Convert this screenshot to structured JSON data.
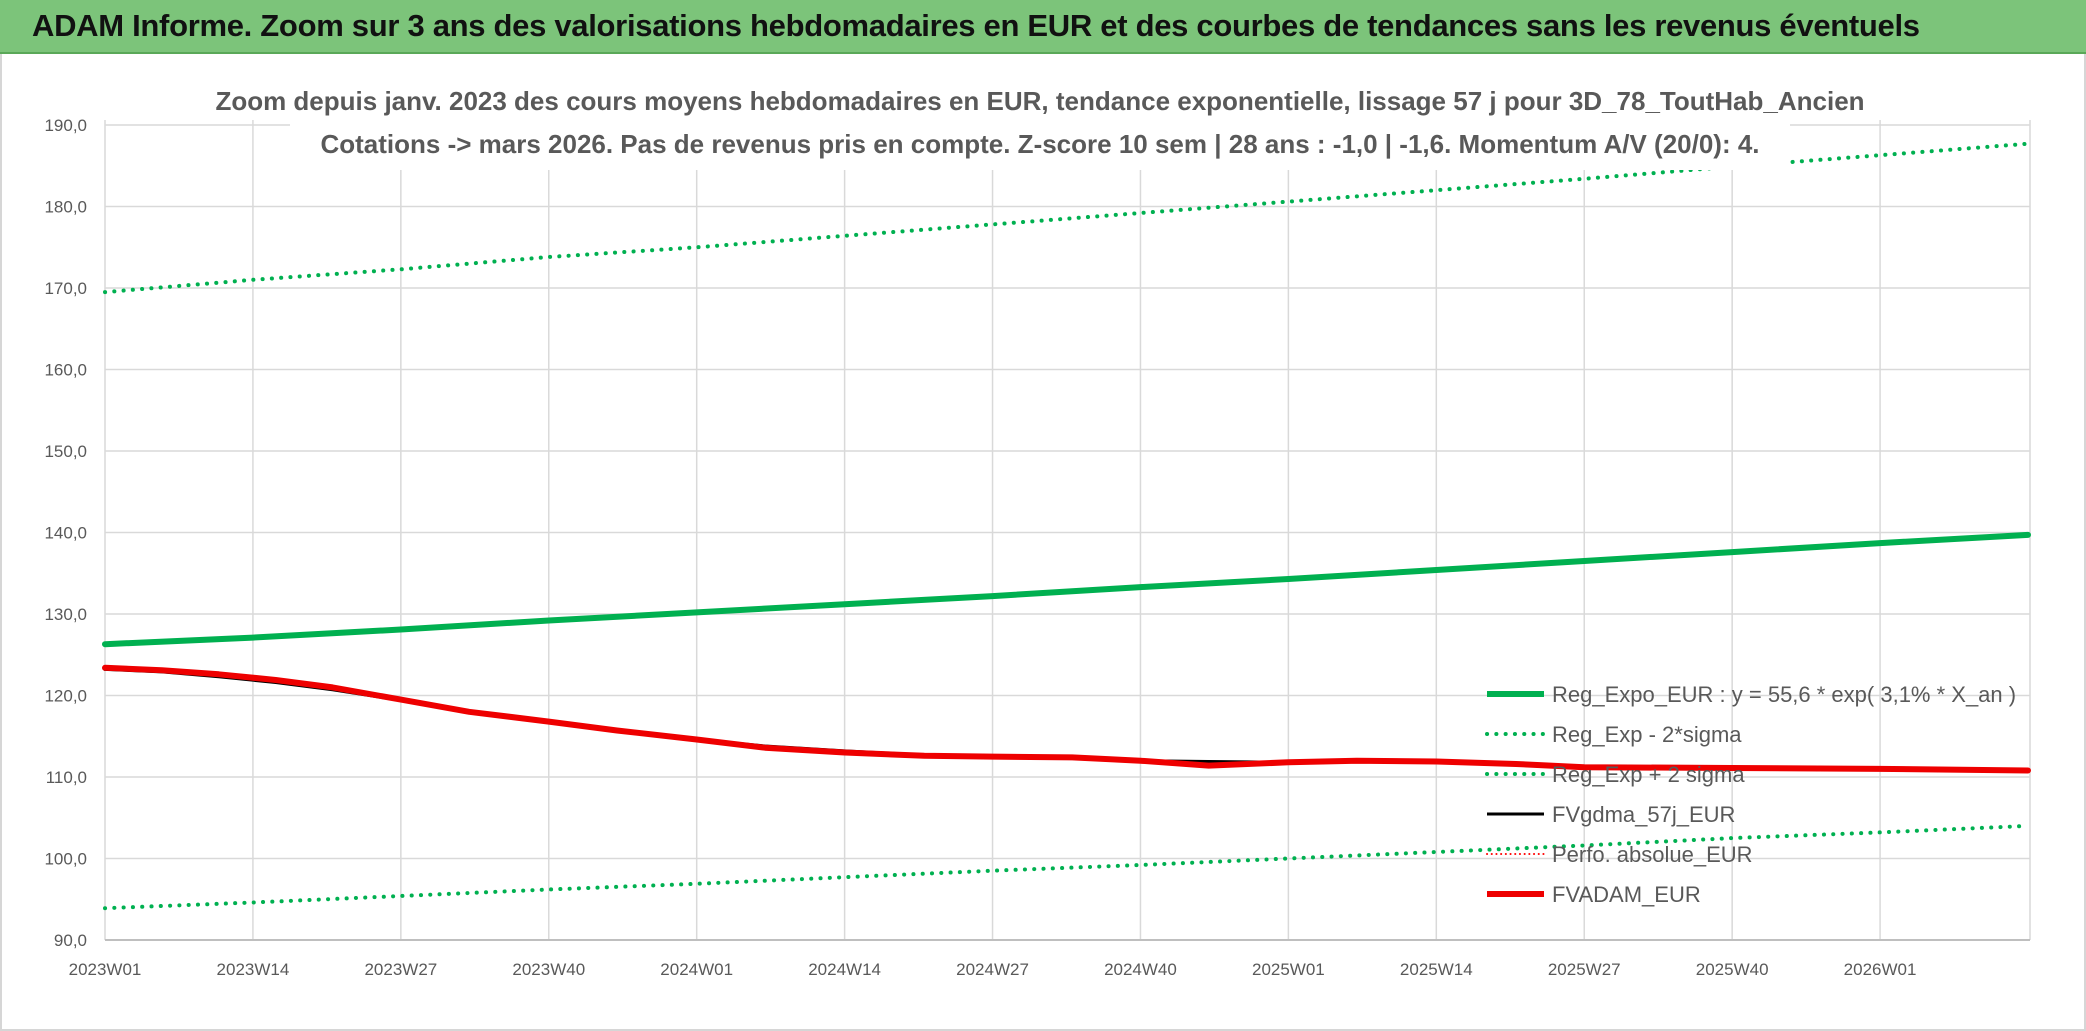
{
  "banner": {
    "title": "ADAM Informe. Zoom sur 3 ans des valorisations hebdomadaires en EUR et des courbes de tendances sans les revenus éventuels"
  },
  "chart_data": {
    "type": "line",
    "title": "Zoom depuis janv. 2023 des cours moyens hebdomadaires en EUR, tendance exponentielle, lissage 57 j pour 3D_78_ToutHab_Ancien",
    "subtitle": "Cotations -> mars 2026. Pas de revenus pris en compte. Z-score 10 sem | 28 ans : -1,0 | -1,6. Momentum A/V (20/0): 4.",
    "xlabel": "",
    "ylabel": "",
    "ylim": [
      90,
      190
    ],
    "yticks": [
      90,
      100,
      110,
      120,
      130,
      140,
      150,
      160,
      170,
      180,
      190
    ],
    "ytick_labels": [
      "90,0",
      "100,0",
      "110,0",
      "120,0",
      "130,0",
      "140,0",
      "150,0",
      "160,0",
      "170,0",
      "180,0",
      "190,0"
    ],
    "x_categories": [
      "2023W01",
      "2023W14",
      "2023W27",
      "2023W40",
      "2024W01",
      "2024W14",
      "2024W27",
      "2024W40",
      "2025W01",
      "2025W14",
      "2025W27",
      "2025W40",
      "2026W01"
    ],
    "x_range_weeks": [
      0,
      169
    ],
    "grid": true,
    "legend_position": "bottom-right",
    "series": [
      {
        "name": "Reg_Expo_EUR : y = 55,6 * exp( 3,1% *  X_an )",
        "style": "solid",
        "color": "#00b050",
        "width": 6,
        "points": [
          [
            0,
            126.3
          ],
          [
            13,
            127.1
          ],
          [
            26,
            128.1
          ],
          [
            39,
            129.2
          ],
          [
            52,
            130.2
          ],
          [
            65,
            131.2
          ],
          [
            78,
            132.2
          ],
          [
            91,
            133.3
          ],
          [
            104,
            134.3
          ],
          [
            117,
            135.4
          ],
          [
            130,
            136.5
          ],
          [
            143,
            137.6
          ],
          [
            156,
            138.7
          ],
          [
            169,
            139.7
          ]
        ]
      },
      {
        "name": "Reg_Exp - 2*sigma",
        "style": "dotted",
        "color": "#00b050",
        "width": 4,
        "points": [
          [
            0,
            93.9
          ],
          [
            13,
            94.6
          ],
          [
            26,
            95.4
          ],
          [
            39,
            96.2
          ],
          [
            52,
            96.9
          ],
          [
            65,
            97.7
          ],
          [
            78,
            98.5
          ],
          [
            91,
            99.2
          ],
          [
            104,
            100.0
          ],
          [
            117,
            100.8
          ],
          [
            130,
            101.6
          ],
          [
            143,
            102.5
          ],
          [
            156,
            103.2
          ],
          [
            169,
            104.0
          ]
        ]
      },
      {
        "name": "Reg_Exp + 2 sigma",
        "style": "dotted",
        "color": "#00b050",
        "width": 4,
        "points": [
          [
            0,
            169.5
          ],
          [
            13,
            171.0
          ],
          [
            26,
            172.3
          ],
          [
            39,
            173.8
          ],
          [
            52,
            175.0
          ],
          [
            65,
            176.4
          ],
          [
            78,
            177.8
          ],
          [
            91,
            179.2
          ],
          [
            104,
            180.6
          ],
          [
            117,
            182.0
          ],
          [
            130,
            183.4
          ],
          [
            143,
            184.9
          ],
          [
            156,
            186.3
          ],
          [
            169,
            187.7
          ]
        ]
      },
      {
        "name": "FVgdma_57j_EUR",
        "style": "solid",
        "color": "#000000",
        "width": 3,
        "points": [
          [
            0,
            123.2
          ],
          [
            5,
            122.9
          ],
          [
            10,
            122.3
          ],
          [
            15,
            121.6
          ],
          [
            20,
            120.7
          ],
          [
            26,
            119.4
          ],
          [
            32,
            118.0
          ],
          [
            39,
            116.7
          ],
          [
            45,
            115.6
          ],
          [
            52,
            114.6
          ],
          [
            58,
            113.8
          ],
          [
            65,
            113.2
          ],
          [
            72,
            112.7
          ],
          [
            78,
            112.5
          ],
          [
            85,
            112.3
          ],
          [
            91,
            112.0
          ],
          [
            97,
            111.9
          ],
          [
            104,
            111.8
          ],
          [
            110,
            111.9
          ],
          [
            117,
            111.9
          ],
          [
            124,
            111.7
          ],
          [
            130,
            111.3
          ],
          [
            143,
            111.1
          ],
          [
            156,
            111.0
          ],
          [
            169,
            110.8
          ]
        ]
      },
      {
        "name": "Perfo. absolue_EUR",
        "style": "dotted",
        "color": "#ff0000",
        "width": 2,
        "points": []
      },
      {
        "name": "FVADAM_EUR",
        "style": "solid",
        "color": "#ee0000",
        "width": 6,
        "points": [
          [
            0,
            123.4
          ],
          [
            5,
            123.1
          ],
          [
            10,
            122.6
          ],
          [
            15,
            121.9
          ],
          [
            20,
            121.0
          ],
          [
            26,
            119.5
          ],
          [
            32,
            118.0
          ],
          [
            39,
            116.8
          ],
          [
            45,
            115.7
          ],
          [
            52,
            114.6
          ],
          [
            58,
            113.6
          ],
          [
            65,
            113.0
          ],
          [
            72,
            112.6
          ],
          [
            78,
            112.5
          ],
          [
            85,
            112.4
          ],
          [
            91,
            112.0
          ],
          [
            97,
            111.4
          ],
          [
            104,
            111.8
          ],
          [
            110,
            112.0
          ],
          [
            117,
            111.9
          ],
          [
            124,
            111.6
          ],
          [
            130,
            111.2
          ],
          [
            143,
            111.1
          ],
          [
            156,
            111.0
          ],
          [
            169,
            110.8
          ]
        ]
      }
    ]
  }
}
